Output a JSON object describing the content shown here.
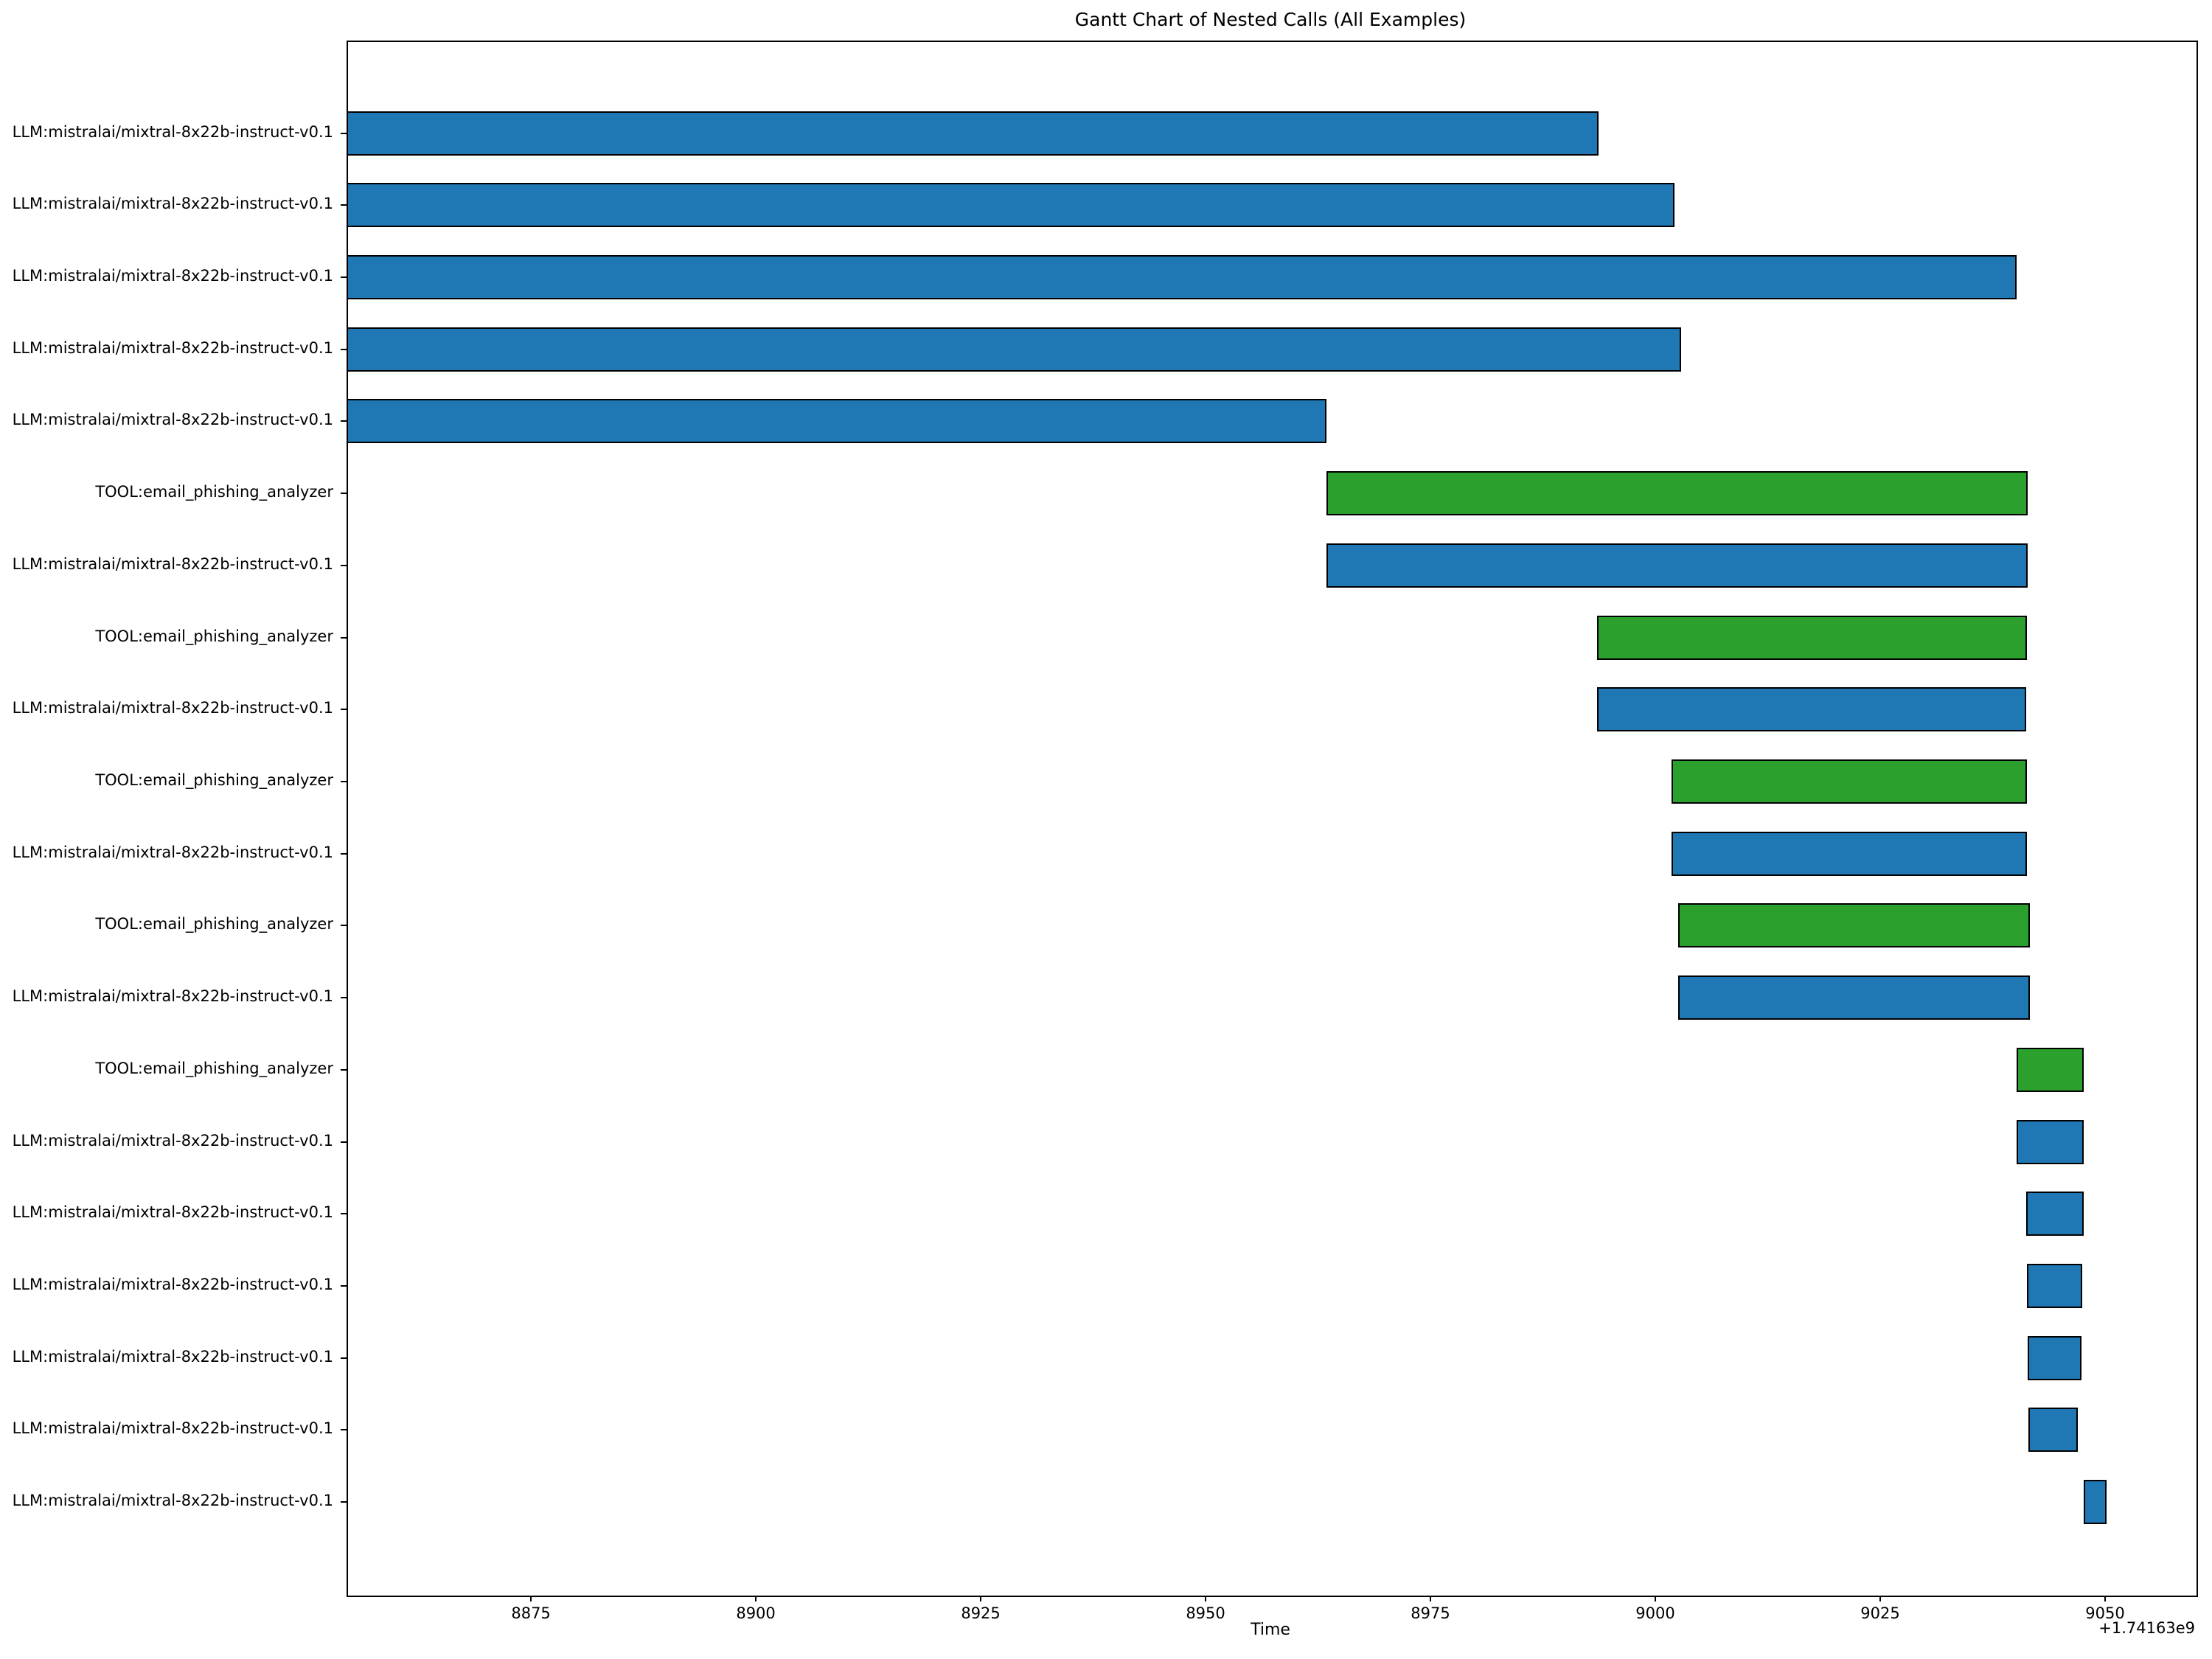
{
  "figure": {
    "title": "Gantt Chart of Nested Calls (All Examples)",
    "xlabel": "Time",
    "axis_offset_label": "+1.74163e9"
  },
  "chart_data": {
    "type": "gantt",
    "title": "Gantt Chart of Nested Calls (All Examples)",
    "xlabel": "Time",
    "ylabel": "",
    "x_offset_label": "+1.74163e9",
    "grid": false,
    "legend": false,
    "xlim": [
      8854.5,
      9060
    ],
    "xticks": [
      8875,
      8900,
      8925,
      8950,
      8975,
      9000,
      9025,
      9050
    ],
    "colors": {
      "LLM": "#1f77b4",
      "TOOL": "#2ca02c",
      "bar_edge": "#000000",
      "text": "#000000",
      "background": "#ffffff"
    },
    "rows_top_to_bottom": [
      {
        "label": "LLM:mistralai/mixtral-8x22b-instruct-v0.1",
        "kind": "LLM",
        "start": 8854.5,
        "end": 8993.7,
        "clipped_left": true
      },
      {
        "label": "LLM:mistralai/mixtral-8x22b-instruct-v0.1",
        "kind": "LLM",
        "start": 8854.5,
        "end": 9002.1,
        "clipped_left": true
      },
      {
        "label": "LLM:mistralai/mixtral-8x22b-instruct-v0.1",
        "kind": "LLM",
        "start": 8854.5,
        "end": 9040.2,
        "clipped_left": true
      },
      {
        "label": "LLM:mistralai/mixtral-8x22b-instruct-v0.1",
        "kind": "LLM",
        "start": 8854.5,
        "end": 9002.9,
        "clipped_left": true
      },
      {
        "label": "LLM:mistralai/mixtral-8x22b-instruct-v0.1",
        "kind": "LLM",
        "start": 8854.5,
        "end": 8963.4,
        "clipped_left": true
      },
      {
        "label": "TOOL:email_phishing_analyzer",
        "kind": "TOOL",
        "start": 8963.4,
        "end": 9041.4,
        "clipped_left": false
      },
      {
        "label": "LLM:mistralai/mixtral-8x22b-instruct-v0.1",
        "kind": "LLM",
        "start": 8963.4,
        "end": 9041.4,
        "clipped_left": false
      },
      {
        "label": "TOOL:email_phishing_analyzer",
        "kind": "TOOL",
        "start": 8993.5,
        "end": 9041.3,
        "clipped_left": false
      },
      {
        "label": "LLM:mistralai/mixtral-8x22b-instruct-v0.1",
        "kind": "LLM",
        "start": 8993.5,
        "end": 9041.2,
        "clipped_left": false
      },
      {
        "label": "TOOL:email_phishing_analyzer",
        "kind": "TOOL",
        "start": 9001.8,
        "end": 9041.3,
        "clipped_left": false
      },
      {
        "label": "LLM:mistralai/mixtral-8x22b-instruct-v0.1",
        "kind": "LLM",
        "start": 9001.8,
        "end": 9041.3,
        "clipped_left": false
      },
      {
        "label": "TOOL:email_phishing_analyzer",
        "kind": "TOOL",
        "start": 9002.5,
        "end": 9041.6,
        "clipped_left": false
      },
      {
        "label": "LLM:mistralai/mixtral-8x22b-instruct-v0.1",
        "kind": "LLM",
        "start": 9002.5,
        "end": 9041.6,
        "clipped_left": false
      },
      {
        "label": "TOOL:email_phishing_analyzer",
        "kind": "TOOL",
        "start": 9040.2,
        "end": 9047.6,
        "clipped_left": false
      },
      {
        "label": "LLM:mistralai/mixtral-8x22b-instruct-v0.1",
        "kind": "LLM",
        "start": 9040.2,
        "end": 9047.6,
        "clipped_left": false
      },
      {
        "label": "LLM:mistralai/mixtral-8x22b-instruct-v0.1",
        "kind": "LLM",
        "start": 9041.2,
        "end": 9047.6,
        "clipped_left": false
      },
      {
        "label": "LLM:mistralai/mixtral-8x22b-instruct-v0.1",
        "kind": "LLM",
        "start": 9041.3,
        "end": 9047.5,
        "clipped_left": false
      },
      {
        "label": "LLM:mistralai/mixtral-8x22b-instruct-v0.1",
        "kind": "LLM",
        "start": 9041.4,
        "end": 9047.4,
        "clipped_left": false
      },
      {
        "label": "LLM:mistralai/mixtral-8x22b-instruct-v0.1",
        "kind": "LLM",
        "start": 9041.5,
        "end": 9047.0,
        "clipped_left": false
      },
      {
        "label": "LLM:mistralai/mixtral-8x22b-instruct-v0.1",
        "kind": "LLM",
        "start": 9047.6,
        "end": 9050.2,
        "clipped_left": false
      }
    ]
  }
}
